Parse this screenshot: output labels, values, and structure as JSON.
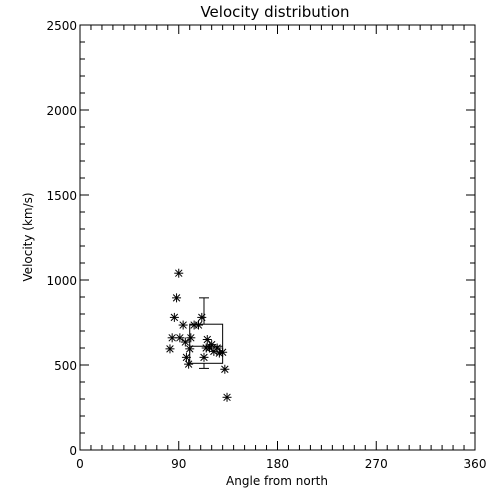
{
  "chart_data": {
    "type": "scatter",
    "title": "Velocity distribution",
    "xlabel": "Angle from north",
    "ylabel": "Velocity (km/s)",
    "xlim": [
      0,
      360
    ],
    "ylim": [
      0,
      2500
    ],
    "xticks": [
      0,
      90,
      180,
      270,
      360
    ],
    "yticks": [
      0,
      500,
      1000,
      1500,
      2000,
      2500
    ],
    "marker": "asterisk",
    "grid": false,
    "series": [
      {
        "points": [
          {
            "x": 90,
            "y": 1040
          },
          {
            "x": 88,
            "y": 895
          },
          {
            "x": 86,
            "y": 780
          },
          {
            "x": 84,
            "y": 660
          },
          {
            "x": 82,
            "y": 595
          },
          {
            "x": 91,
            "y": 660
          },
          {
            "x": 94,
            "y": 735
          },
          {
            "x": 96,
            "y": 635
          },
          {
            "x": 97,
            "y": 545
          },
          {
            "x": 99,
            "y": 505
          },
          {
            "x": 100,
            "y": 595
          },
          {
            "x": 101,
            "y": 660
          },
          {
            "x": 104,
            "y": 735
          },
          {
            "x": 108,
            "y": 735
          },
          {
            "x": 111,
            "y": 780
          },
          {
            "x": 113,
            "y": 545
          },
          {
            "x": 115,
            "y": 600
          },
          {
            "x": 116,
            "y": 650
          },
          {
            "x": 118,
            "y": 600
          },
          {
            "x": 120,
            "y": 620
          },
          {
            "x": 122,
            "y": 580
          },
          {
            "x": 125,
            "y": 600
          },
          {
            "x": 127,
            "y": 570
          },
          {
            "x": 130,
            "y": 575
          },
          {
            "x": 132,
            "y": 475
          },
          {
            "x": 134,
            "y": 310
          }
        ]
      }
    ],
    "summary_box": {
      "x_center": 113,
      "x_low": 100,
      "x_high": 130,
      "y_center": 610,
      "y_low": 510,
      "y_high": 740,
      "y_whisker_low": 480,
      "y_whisker_high": 895
    }
  }
}
